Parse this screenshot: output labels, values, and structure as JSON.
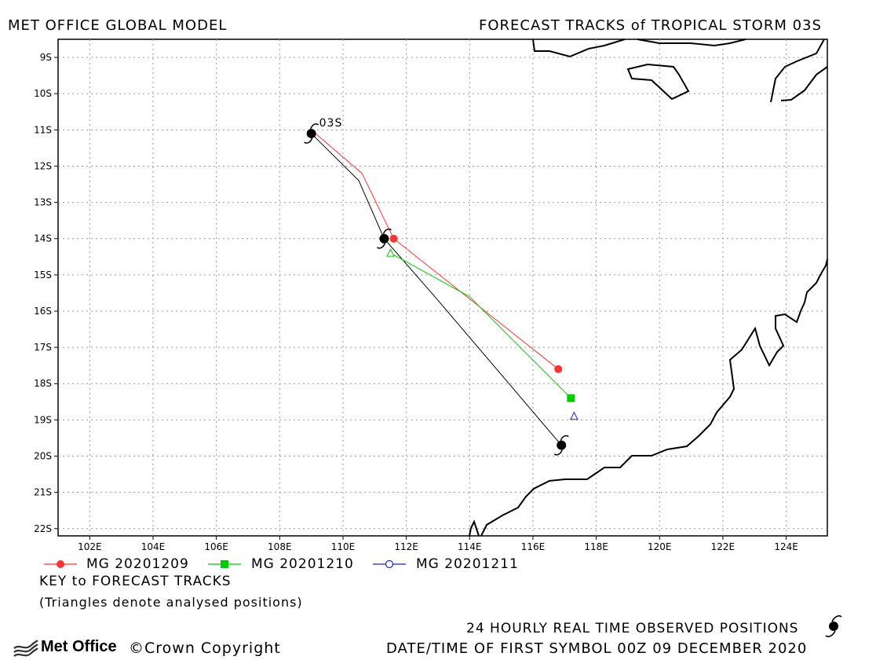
{
  "header": {
    "left_title": "MET OFFICE GLOBAL MODEL",
    "right_title": "FORECAST TRACKS of TROPICAL STORM 03S"
  },
  "map": {
    "lon_range": [
      101,
      125.3
    ],
    "lat_range": [
      -22.2,
      -8.5
    ],
    "lon_ticks": [
      "102E",
      "104E",
      "106E",
      "108E",
      "110E",
      "112E",
      "114E",
      "116E",
      "118E",
      "120E",
      "122E",
      "124E"
    ],
    "lat_ticks": [
      "9S",
      "10S",
      "11S",
      "12S",
      "13S",
      "14S",
      "15S",
      "16S",
      "17S",
      "18S",
      "19S",
      "20S",
      "21S",
      "22S"
    ],
    "storm_label": "03S",
    "colors": {
      "observed": "#000000",
      "mg_20201209": "#ff3333",
      "mg_20201210": "#00cc00",
      "mg_20201211": "#2222cc",
      "coast": "#000000",
      "grid": "#999999"
    }
  },
  "tracks": {
    "observed": [
      [
        109.0,
        -11.1
      ],
      [
        110.5,
        -12.4
      ],
      [
        111.3,
        -14.0
      ],
      [
        113.0,
        -15.7
      ],
      [
        116.9,
        -19.7
      ]
    ],
    "mg_20201209": [
      [
        109.0,
        -11.0
      ],
      [
        110.6,
        -12.2
      ],
      [
        111.6,
        -14.0
      ],
      [
        116.8,
        -17.6
      ]
    ],
    "mg_20201210": [
      [
        111.5,
        -14.4
      ],
      [
        114.0,
        -15.6
      ],
      [
        117.2,
        -18.4
      ]
    ],
    "mg_20201211": [
      [
        117.3,
        -18.9
      ]
    ],
    "observed_symbols": [
      [
        109.0,
        -11.1
      ],
      [
        111.3,
        -14.0
      ],
      [
        116.9,
        -19.7
      ]
    ]
  },
  "legend": {
    "items": [
      {
        "label": "MG 20201209",
        "color": "#ff3333",
        "marker": "circle"
      },
      {
        "label": "MG 20201210",
        "color": "#00cc00",
        "marker": "square"
      },
      {
        "label": "MG 20201211",
        "color": "#2222cc",
        "marker": "open-circle"
      }
    ],
    "key_title": "KEY to FORECAST TRACKS",
    "key_note": "(Triangles denote analysed positions)"
  },
  "footer": {
    "observed_note": "24 HOURLY REAL TIME OBSERVED POSITIONS",
    "first_symbol": "DATE/TIME OF FIRST SYMBOL 00Z 09 DECEMBER 2020",
    "logo_text": "Met Office",
    "copyright": "Crown Copyright",
    "logo_icon": "met-office-logo-icon",
    "copyright_icon": "copyright-icon",
    "storm_icon": "tropical-cyclone-icon"
  }
}
